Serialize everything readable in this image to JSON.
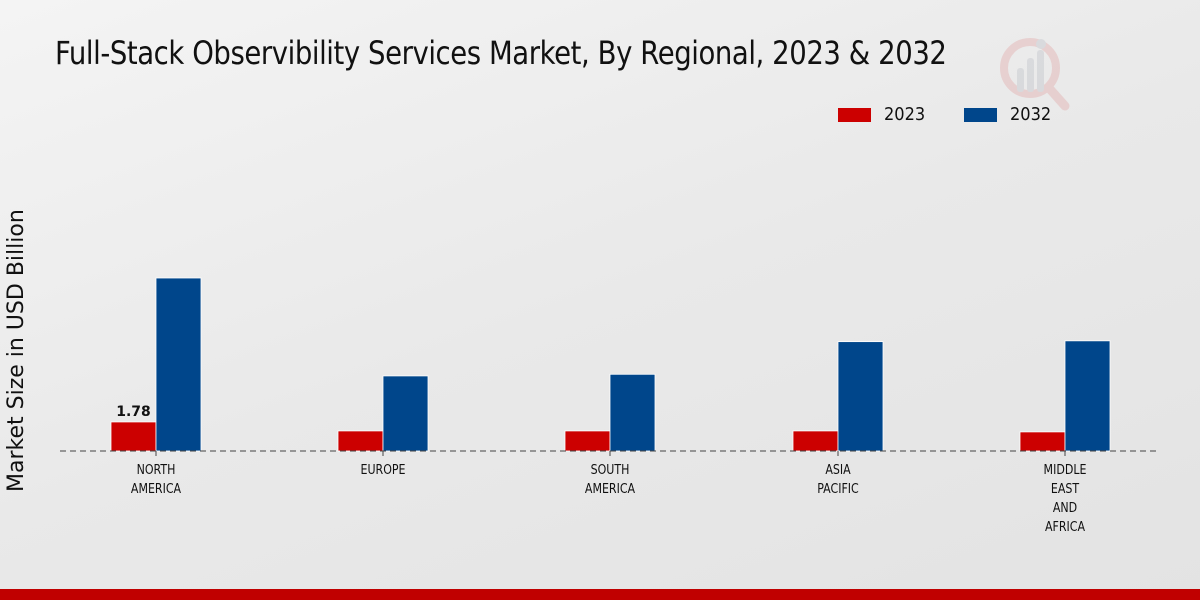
{
  "chart_data": {
    "type": "bar",
    "title": "Full-Stack Observibility Services Market, By Regional, 2023 & 2032",
    "xlabel": "",
    "ylabel": "Market Size in USD Billion",
    "categories": [
      [
        "NORTH",
        "AMERICA"
      ],
      [
        "EUROPE"
      ],
      [
        "SOUTH",
        "AMERICA"
      ],
      [
        "ASIA",
        "PACIFIC"
      ],
      [
        "MIDDLE",
        "EAST",
        "AND",
        "AFRICA"
      ]
    ],
    "series": [
      {
        "name": "2023",
        "color": "#cc0000",
        "values": [
          1.78,
          1.23,
          1.23,
          1.23,
          1.17
        ]
      },
      {
        "name": "2032",
        "color": "#00468b",
        "values": [
          10.6,
          4.6,
          4.7,
          6.7,
          6.75
        ]
      }
    ],
    "data_labels": [
      {
        "series": 0,
        "index": 0,
        "text": "1.78"
      }
    ],
    "ylim": [
      0,
      12
    ],
    "grid": false,
    "legend": "top-right",
    "baseline_style": "dashed"
  }
}
